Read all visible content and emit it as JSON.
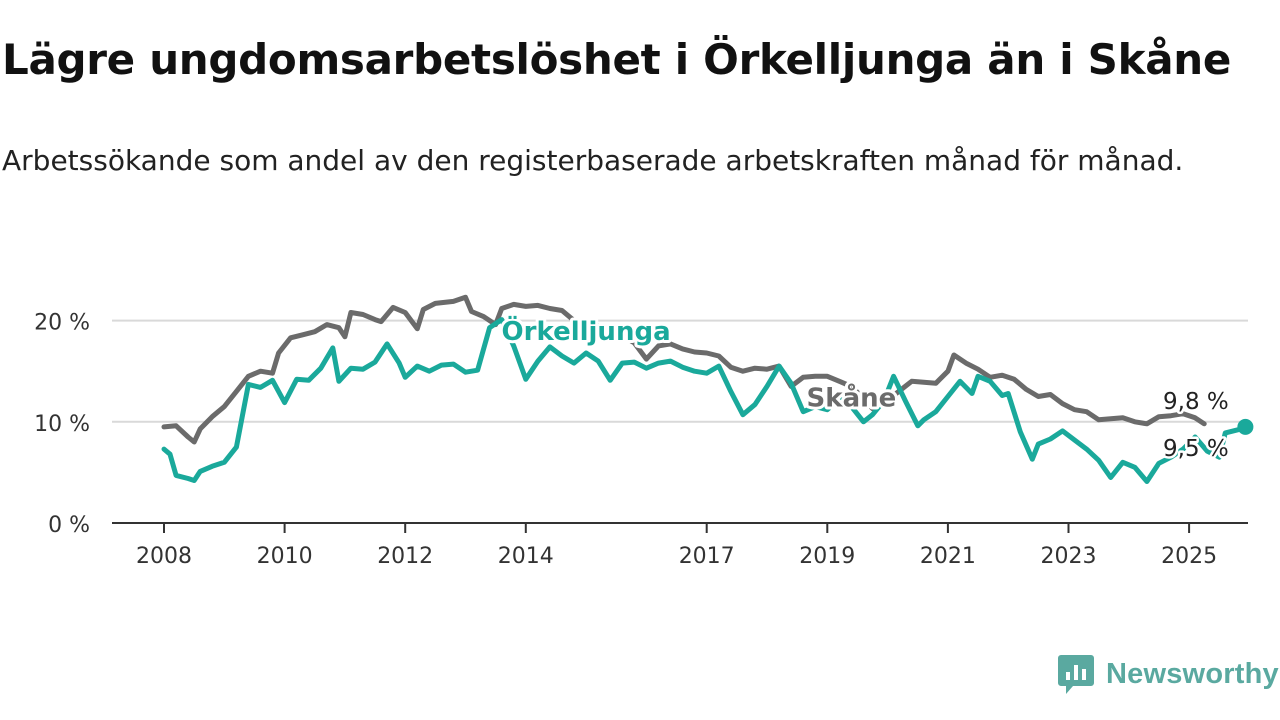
{
  "header": {
    "title": "Lägre ungdomsarbetslöshet i Örkelljunga än i Skåne",
    "subtitle": "Arbetssökande som andel av den registerbaserade arbetskraften månad för månad."
  },
  "brand": {
    "name": "Newsworthy",
    "icon": "chart-bubble-icon",
    "color": "#5aa9a0"
  },
  "chart_data": {
    "type": "line",
    "title": "Lägre ungdomsarbetslöshet i Örkelljunga än i Skåne",
    "subtitle": "Arbetssökande som andel av den registerbaserade arbetskraften månad för månad.",
    "xlabel": "",
    "ylabel": "",
    "xlim": [
      2007.5,
      2026.0
    ],
    "ylim": [
      0,
      22
    ],
    "x_ticks": [
      2008,
      2010,
      2012,
      2014,
      2017,
      2019,
      2021,
      2023,
      2025
    ],
    "y_ticks": [
      {
        "value": 0,
        "label": "0 %"
      },
      {
        "value": 10,
        "label": "10 %"
      },
      {
        "value": 20,
        "label": "20 %"
      }
    ],
    "grid": true,
    "legend": "none",
    "series": [
      {
        "name": "Skåne",
        "color": "#6b6b6b",
        "label_at": [
          2019.4,
          11.5
        ],
        "end_label": "9,8 %",
        "points": [
          [
            2008.0,
            9.5
          ],
          [
            2008.2,
            9.6
          ],
          [
            2008.4,
            8.5
          ],
          [
            2008.5,
            8.0
          ],
          [
            2008.6,
            9.3
          ],
          [
            2008.8,
            10.5
          ],
          [
            2009.0,
            11.5
          ],
          [
            2009.2,
            13.0
          ],
          [
            2009.4,
            14.5
          ],
          [
            2009.6,
            15.0
          ],
          [
            2009.8,
            14.8
          ],
          [
            2009.9,
            16.8
          ],
          [
            2010.1,
            18.3
          ],
          [
            2010.3,
            18.6
          ],
          [
            2010.5,
            18.9
          ],
          [
            2010.7,
            19.6
          ],
          [
            2010.9,
            19.3
          ],
          [
            2011.0,
            18.4
          ],
          [
            2011.1,
            20.8
          ],
          [
            2011.3,
            20.6
          ],
          [
            2011.5,
            20.1
          ],
          [
            2011.6,
            19.9
          ],
          [
            2011.8,
            21.3
          ],
          [
            2012.0,
            20.8
          ],
          [
            2012.2,
            19.2
          ],
          [
            2012.3,
            21.1
          ],
          [
            2012.5,
            21.7
          ],
          [
            2012.8,
            21.9
          ],
          [
            2013.0,
            22.3
          ],
          [
            2013.1,
            20.9
          ],
          [
            2013.3,
            20.4
          ],
          [
            2013.5,
            19.6
          ],
          [
            2013.6,
            21.2
          ],
          [
            2013.8,
            21.6
          ],
          [
            2014.0,
            21.4
          ],
          [
            2014.2,
            21.5
          ],
          [
            2014.4,
            21.2
          ],
          [
            2014.6,
            21.0
          ],
          [
            2014.8,
            20.0
          ],
          [
            2015.0,
            19.0
          ],
          [
            2015.2,
            19.5
          ],
          [
            2015.4,
            18.8
          ],
          [
            2015.6,
            18.5
          ],
          [
            2015.8,
            17.8
          ],
          [
            2016.0,
            16.2
          ],
          [
            2016.2,
            17.5
          ],
          [
            2016.4,
            17.7
          ],
          [
            2016.6,
            17.2
          ],
          [
            2016.8,
            16.9
          ],
          [
            2017.0,
            16.8
          ],
          [
            2017.2,
            16.5
          ],
          [
            2017.4,
            15.4
          ],
          [
            2017.6,
            15.0
          ],
          [
            2017.8,
            15.3
          ],
          [
            2018.0,
            15.2
          ],
          [
            2018.2,
            15.5
          ],
          [
            2018.4,
            13.5
          ],
          [
            2018.6,
            14.4
          ],
          [
            2018.8,
            14.5
          ],
          [
            2019.0,
            14.5
          ],
          [
            2019.2,
            14.0
          ],
          [
            2019.4,
            13.5
          ],
          [
            2019.6,
            12.3
          ],
          [
            2019.75,
            11.3
          ],
          [
            2019.9,
            12.2
          ],
          [
            2020.1,
            12.6
          ],
          [
            2020.4,
            14.0
          ],
          [
            2020.8,
            13.8
          ],
          [
            2021.0,
            15.0
          ],
          [
            2021.1,
            16.6
          ],
          [
            2021.3,
            15.8
          ],
          [
            2021.5,
            15.2
          ],
          [
            2021.7,
            14.4
          ],
          [
            2021.9,
            14.6
          ],
          [
            2022.1,
            14.2
          ],
          [
            2022.3,
            13.2
          ],
          [
            2022.5,
            12.5
          ],
          [
            2022.7,
            12.7
          ],
          [
            2022.9,
            11.8
          ],
          [
            2023.1,
            11.2
          ],
          [
            2023.3,
            11.0
          ],
          [
            2023.5,
            10.2
          ],
          [
            2023.7,
            10.3
          ],
          [
            2023.9,
            10.4
          ],
          [
            2024.1,
            10.0
          ],
          [
            2024.3,
            9.8
          ],
          [
            2024.5,
            10.5
          ],
          [
            2024.7,
            10.6
          ],
          [
            2024.9,
            10.8
          ],
          [
            2025.1,
            10.4
          ],
          [
            2025.25,
            9.8
          ]
        ]
      },
      {
        "name": "Örkelljunga",
        "color": "#1aa99b",
        "label_at": [
          2015.0,
          18.1
        ],
        "end_label": "9,5 %",
        "points": [
          [
            2008.0,
            7.3
          ],
          [
            2008.1,
            6.8
          ],
          [
            2008.2,
            4.7
          ],
          [
            2008.4,
            4.4
          ],
          [
            2008.5,
            4.2
          ],
          [
            2008.6,
            5.1
          ],
          [
            2008.8,
            5.6
          ],
          [
            2009.0,
            6.0
          ],
          [
            2009.2,
            7.5
          ],
          [
            2009.4,
            13.7
          ],
          [
            2009.6,
            13.4
          ],
          [
            2009.8,
            14.1
          ],
          [
            2010.0,
            11.9
          ],
          [
            2010.2,
            14.2
          ],
          [
            2010.4,
            14.1
          ],
          [
            2010.6,
            15.3
          ],
          [
            2010.8,
            17.3
          ],
          [
            2010.9,
            14.0
          ],
          [
            2011.1,
            15.3
          ],
          [
            2011.3,
            15.2
          ],
          [
            2011.5,
            15.9
          ],
          [
            2011.7,
            17.7
          ],
          [
            2011.9,
            15.8
          ],
          [
            2012.0,
            14.4
          ],
          [
            2012.2,
            15.5
          ],
          [
            2012.4,
            15.0
          ],
          [
            2012.6,
            15.6
          ],
          [
            2012.8,
            15.7
          ],
          [
            2013.0,
            14.9
          ],
          [
            2013.2,
            15.1
          ],
          [
            2013.4,
            19.3
          ],
          [
            2013.6,
            20.1
          ],
          [
            2013.8,
            17.5
          ],
          [
            2014.0,
            14.2
          ],
          [
            2014.2,
            16.0
          ],
          [
            2014.4,
            17.4
          ],
          [
            2014.6,
            16.5
          ],
          [
            2014.8,
            15.8
          ],
          [
            2015.0,
            16.8
          ],
          [
            2015.2,
            16.0
          ],
          [
            2015.4,
            14.1
          ],
          [
            2015.6,
            15.8
          ],
          [
            2015.8,
            15.9
          ],
          [
            2016.0,
            15.3
          ],
          [
            2016.2,
            15.8
          ],
          [
            2016.4,
            16.0
          ],
          [
            2016.6,
            15.4
          ],
          [
            2016.8,
            15.0
          ],
          [
            2017.0,
            14.8
          ],
          [
            2017.2,
            15.5
          ],
          [
            2017.4,
            13.0
          ],
          [
            2017.6,
            10.7
          ],
          [
            2017.8,
            11.7
          ],
          [
            2018.0,
            13.5
          ],
          [
            2018.2,
            15.5
          ],
          [
            2018.4,
            13.8
          ],
          [
            2018.6,
            11.0
          ],
          [
            2018.8,
            11.5
          ],
          [
            2019.0,
            11.2
          ],
          [
            2019.2,
            12.3
          ],
          [
            2019.4,
            11.5
          ],
          [
            2019.6,
            10.0
          ],
          [
            2019.75,
            10.7
          ],
          [
            2019.9,
            11.8
          ],
          [
            2020.0,
            13.0
          ],
          [
            2020.1,
            14.5
          ],
          [
            2020.3,
            12.0
          ],
          [
            2020.5,
            9.6
          ],
          [
            2020.6,
            10.2
          ],
          [
            2020.8,
            11.0
          ],
          [
            2021.0,
            12.5
          ],
          [
            2021.2,
            14.0
          ],
          [
            2021.4,
            12.8
          ],
          [
            2021.5,
            14.5
          ],
          [
            2021.7,
            14.0
          ],
          [
            2021.9,
            12.6
          ],
          [
            2022.0,
            12.8
          ],
          [
            2022.2,
            9.0
          ],
          [
            2022.4,
            6.3
          ],
          [
            2022.5,
            7.8
          ],
          [
            2022.7,
            8.3
          ],
          [
            2022.9,
            9.1
          ],
          [
            2023.1,
            8.2
          ],
          [
            2023.3,
            7.3
          ],
          [
            2023.5,
            6.2
          ],
          [
            2023.7,
            4.5
          ],
          [
            2023.9,
            6.0
          ],
          [
            2024.1,
            5.5
          ],
          [
            2024.3,
            4.1
          ],
          [
            2024.5,
            5.9
          ],
          [
            2024.7,
            6.5
          ],
          [
            2024.9,
            7.3
          ],
          [
            2025.1,
            8.5
          ],
          [
            2025.3,
            7.1
          ],
          [
            2025.5,
            6.5
          ],
          [
            2025.6,
            8.9
          ],
          [
            2025.8,
            9.2
          ],
          [
            2026.0,
            9.5
          ]
        ]
      }
    ]
  }
}
